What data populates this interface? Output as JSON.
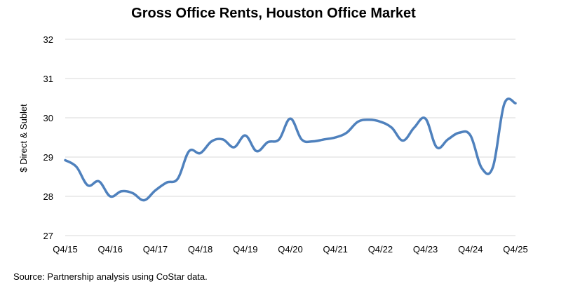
{
  "chart_data": {
    "type": "line",
    "title": "Gross Office Rents, Houston Office Market",
    "ylabel": "$ Direct & Sublet",
    "xlabel": "",
    "ylim": [
      27,
      32
    ],
    "yticks": [
      27,
      28,
      29,
      30,
      31,
      32
    ],
    "xtick_labels": [
      "Q4/15",
      "Q4/16",
      "Q4/17",
      "Q4/18",
      "Q4/19",
      "Q4/20",
      "Q4/21",
      "Q4/22",
      "Q4/23",
      "Q4/24",
      "Q4/25"
    ],
    "grid": true,
    "line_color": "#4F81BD",
    "series": [
      {
        "x": [
          "Q4/15",
          "Q1/16",
          "Q2/16",
          "Q3/16",
          "Q4/16",
          "Q1/17",
          "Q2/17",
          "Q3/17",
          "Q4/17",
          "Q1/18",
          "Q2/18",
          "Q3/18",
          "Q4/18",
          "Q1/19",
          "Q2/19",
          "Q3/19",
          "Q4/19",
          "Q1/20",
          "Q2/20",
          "Q3/20",
          "Q4/20",
          "Q1/21",
          "Q2/21",
          "Q3/21",
          "Q4/21",
          "Q1/22",
          "Q2/22",
          "Q3/22",
          "Q4/22",
          "Q1/23",
          "Q2/23",
          "Q3/23",
          "Q4/23",
          "Q1/24",
          "Q2/24",
          "Q3/24",
          "Q4/24",
          "Q1/25",
          "Q2/25",
          "Q3/25",
          "Q4/25"
        ],
        "values": [
          28.92,
          28.75,
          28.28,
          28.38,
          28.0,
          28.13,
          28.08,
          27.9,
          28.15,
          28.35,
          28.45,
          29.15,
          29.1,
          29.4,
          29.45,
          29.25,
          29.55,
          29.15,
          29.38,
          29.45,
          29.98,
          29.45,
          29.4,
          29.45,
          29.5,
          29.62,
          29.9,
          29.95,
          29.9,
          29.75,
          29.42,
          29.75,
          29.98,
          29.25,
          29.45,
          29.62,
          29.55,
          28.72,
          28.75,
          30.35,
          30.37
        ]
      }
    ]
  },
  "footer": {
    "source": "Source: Partnership analysis using CoStar data."
  }
}
